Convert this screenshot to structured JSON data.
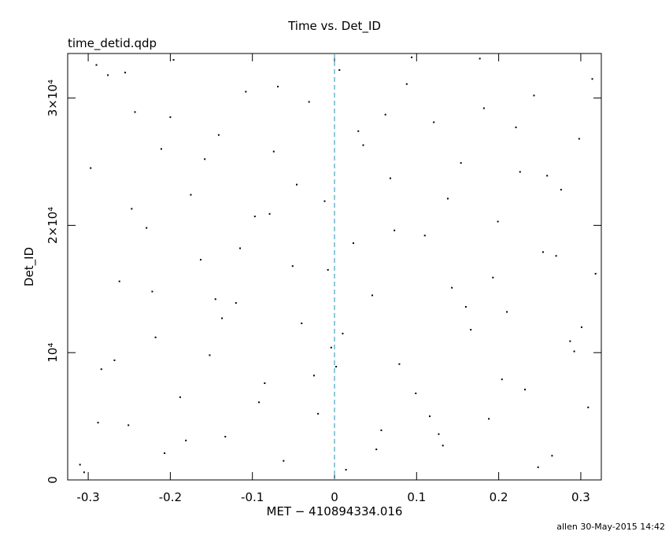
{
  "chart_data": {
    "type": "scatter",
    "title": "Time vs. Det_ID",
    "subtitle": "time_detid.qdp",
    "xlabel": "MET − 410894334.016",
    "ylabel": "Det_ID",
    "footer": "allen 30-May-2015 14:42",
    "color": "#000000",
    "x": [
      -0.31,
      -0.297,
      -0.284,
      -0.276,
      -0.262,
      -0.251,
      -0.243,
      -0.229,
      -0.218,
      -0.207,
      -0.196,
      -0.188,
      -0.175,
      -0.163,
      -0.152,
      -0.141,
      -0.133,
      -0.12,
      -0.108,
      -0.097,
      -0.085,
      -0.074,
      -0.062,
      -0.051,
      -0.04,
      -0.031,
      -0.02,
      -0.012,
      -0.004,
      0.006,
      0.014,
      0.023,
      0.035,
      0.046,
      0.057,
      0.068,
      0.079,
      0.088,
      0.099,
      0.11,
      0.121,
      0.132,
      0.143,
      0.154,
      0.166,
      0.177,
      0.188,
      0.199,
      0.21,
      0.221,
      0.232,
      0.243,
      0.254,
      0.265,
      0.276,
      0.287,
      0.298,
      0.309,
      0.318,
      -0.305,
      -0.29,
      -0.268,
      -0.247,
      -0.222,
      -0.2,
      -0.181,
      -0.158,
      -0.137,
      -0.115,
      -0.092,
      -0.069,
      -0.046,
      -0.025,
      -0.008,
      0.01,
      0.029,
      0.051,
      0.073,
      0.094,
      0.116,
      0.138,
      0.16,
      0.182,
      0.204,
      0.226,
      0.248,
      0.27,
      0.292,
      0.314,
      -0.288,
      -0.211,
      -0.145,
      -0.079,
      0.002,
      0.062,
      0.127,
      0.193,
      0.259,
      0.301,
      -0.255
    ],
    "values": [
      1200,
      24500,
      8700,
      31800,
      15600,
      4300,
      28900,
      19800,
      11200,
      2100,
      33000,
      6500,
      22400,
      17300,
      9800,
      27100,
      3400,
      13900,
      30500,
      20700,
      7600,
      25800,
      1500,
      16800,
      12300,
      29700,
      5200,
      21900,
      10400,
      32200,
      800,
      18600,
      26300,
      14500,
      3900,
      23700,
      9100,
      31100,
      6800,
      19200,
      28100,
      2700,
      15100,
      24900,
      11800,
      33100,
      4800,
      20300,
      13200,
      27700,
      7100,
      30200,
      17900,
      1900,
      22800,
      10900,
      26800,
      5700,
      16200,
      600,
      32600,
      9400,
      21300,
      14800,
      28500,
      3100,
      25200,
      12700,
      18200,
      6100,
      30900,
      23200,
      8200,
      16500,
      11500,
      27400,
      2400,
      19600,
      33200,
      5000,
      22100,
      13600,
      29200,
      7900,
      24200,
      1000,
      17600,
      10100,
      31500,
      4500,
      26000,
      14200,
      20900,
      8900,
      28700,
      3600,
      15900,
      23900,
      12000,
      32000
    ],
    "xlim": [
      -0.325,
      0.325
    ],
    "ylim": [
      0,
      33500
    ],
    "xticks": [
      -0.3,
      -0.2,
      -0.1,
      0,
      0.1,
      0.2,
      0.3
    ],
    "yticks": [
      0,
      {
        "value": 10000,
        "label": "10⁴"
      },
      {
        "value": 20000,
        "label": "2×10⁴"
      },
      {
        "value": 30000,
        "label": "3×10⁴"
      }
    ],
    "vline": {
      "x": 0,
      "color": "#1e90b4"
    }
  }
}
